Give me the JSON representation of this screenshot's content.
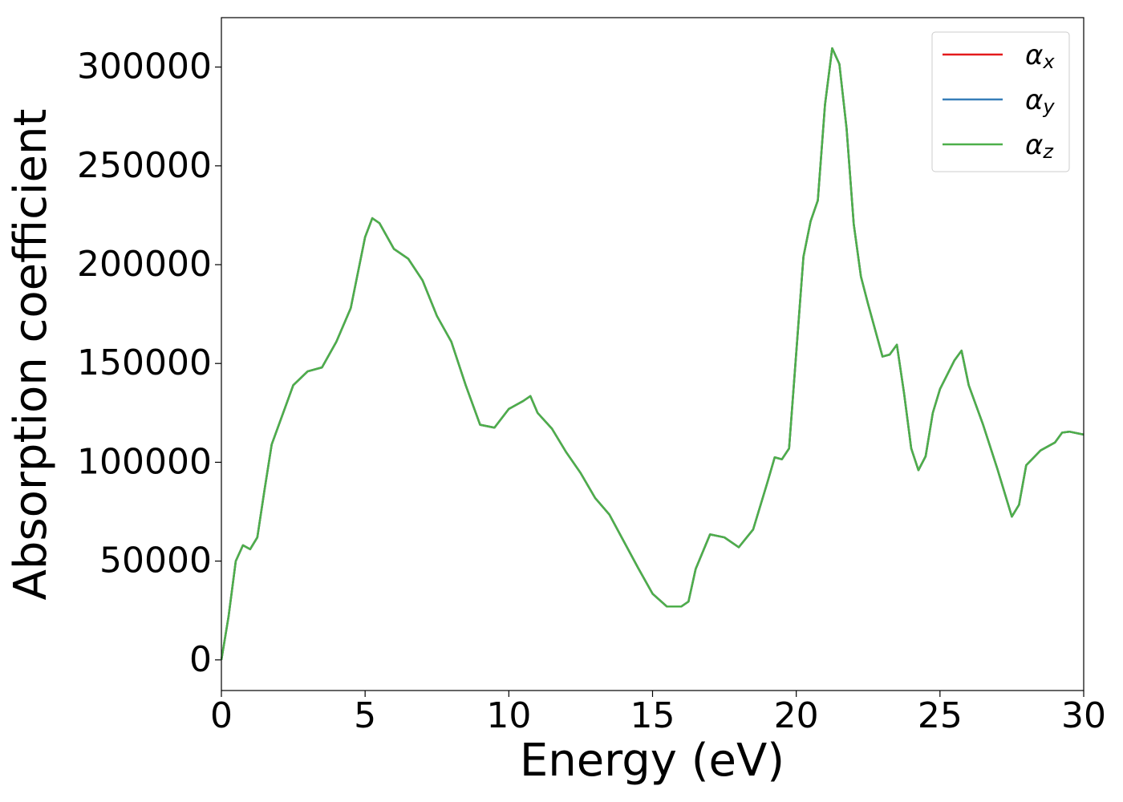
{
  "chart_data": {
    "type": "line",
    "xlabel": "Energy (eV)",
    "ylabel": "Absorption coefficient",
    "x": [
      0,
      0.25,
      0.5,
      0.75,
      1.0,
      1.25,
      1.5,
      1.75,
      2.0,
      2.5,
      3.0,
      3.5,
      4.0,
      4.5,
      5.0,
      5.25,
      5.5,
      6.0,
      6.5,
      7.0,
      7.5,
      8.0,
      8.5,
      9.0,
      9.5,
      10.0,
      10.5,
      10.75,
      11.0,
      11.5,
      12.0,
      12.5,
      13.0,
      13.5,
      14.0,
      14.5,
      15.0,
      15.5,
      16.0,
      16.25,
      16.5,
      17.0,
      17.5,
      18.0,
      18.5,
      19.0,
      19.25,
      19.5,
      19.75,
      20.0,
      20.25,
      20.5,
      20.75,
      21.0,
      21.25,
      21.5,
      21.75,
      22.0,
      22.25,
      22.5,
      23.0,
      23.25,
      23.5,
      23.75,
      24.0,
      24.25,
      24.5,
      24.75,
      25.0,
      25.5,
      25.75,
      26.0,
      26.5,
      27.0,
      27.5,
      27.75,
      28.0,
      28.5,
      29.0,
      29.25,
      29.5,
      30.0
    ],
    "series": [
      {
        "name": "αx",
        "color": "#e41a1c",
        "values": [
          0,
          22000,
          50000,
          58000,
          56000,
          62000,
          86000,
          109000,
          119000,
          139000,
          146000,
          148000,
          161000,
          178000,
          214000,
          223500,
          221000,
          208000,
          203000,
          192000,
          174000,
          161000,
          139000,
          119000,
          117500,
          127000,
          131000,
          133500,
          125000,
          117000,
          105000,
          94500,
          82000,
          73500,
          60000,
          46500,
          33500,
          27000,
          27000,
          29500,
          46000,
          63500,
          62000,
          57000,
          66000,
          90000,
          102500,
          101500,
          107000,
          155500,
          204000,
          222000,
          232500,
          281000,
          309500,
          301500,
          269000,
          220500,
          194000,
          180000,
          153500,
          154500,
          159500,
          135000,
          107000,
          96000,
          103000,
          125000,
          137000,
          151500,
          156500,
          139000,
          119000,
          96500,
          72500,
          78500,
          98500,
          106000,
          110000,
          115000,
          115500,
          114000
        ]
      },
      {
        "name": "αy",
        "color": "#377eb8",
        "values": [
          0,
          22000,
          50000,
          58000,
          56000,
          62000,
          86000,
          109000,
          119000,
          139000,
          146000,
          148000,
          161000,
          178000,
          214000,
          223500,
          221000,
          208000,
          203000,
          192000,
          174000,
          161000,
          139000,
          119000,
          117500,
          127000,
          131000,
          133500,
          125000,
          117000,
          105000,
          94500,
          82000,
          73500,
          60000,
          46500,
          33500,
          27000,
          27000,
          29500,
          46000,
          63500,
          62000,
          57000,
          66000,
          90000,
          102500,
          101500,
          107000,
          155500,
          204000,
          222000,
          232500,
          281000,
          309500,
          301500,
          269000,
          220500,
          194000,
          180000,
          153500,
          154500,
          159500,
          135000,
          107000,
          96000,
          103000,
          125000,
          137000,
          151500,
          156500,
          139000,
          119000,
          96500,
          72500,
          78500,
          98500,
          106000,
          110000,
          115000,
          115500,
          114000
        ]
      },
      {
        "name": "αz",
        "color": "#4daf4a",
        "values": [
          0,
          22000,
          50000,
          58000,
          56000,
          62000,
          86000,
          109000,
          119000,
          139000,
          146000,
          148000,
          161000,
          178000,
          214000,
          223500,
          221000,
          208000,
          203000,
          192000,
          174000,
          161000,
          139000,
          119000,
          117500,
          127000,
          131000,
          133500,
          125000,
          117000,
          105000,
          94500,
          82000,
          73500,
          60000,
          46500,
          33500,
          27000,
          27000,
          29500,
          46000,
          63500,
          62000,
          57000,
          66000,
          90000,
          102500,
          101500,
          107000,
          155500,
          204000,
          222000,
          232500,
          281000,
          309500,
          301500,
          269000,
          220500,
          194000,
          180000,
          153500,
          154500,
          159500,
          135000,
          107000,
          96000,
          103000,
          125000,
          137000,
          151500,
          156500,
          139000,
          119000,
          96500,
          72500,
          78500,
          98500,
          106000,
          110000,
          115000,
          115500,
          114000
        ]
      }
    ],
    "xlim": [
      0,
      30
    ],
    "xticks": [
      0,
      5,
      10,
      15,
      20,
      25,
      30
    ],
    "ylim": [
      -15500,
      325000
    ],
    "yticks": [
      0,
      50000,
      100000,
      150000,
      200000,
      250000,
      300000
    ],
    "grid": false,
    "legend": "upper right"
  }
}
